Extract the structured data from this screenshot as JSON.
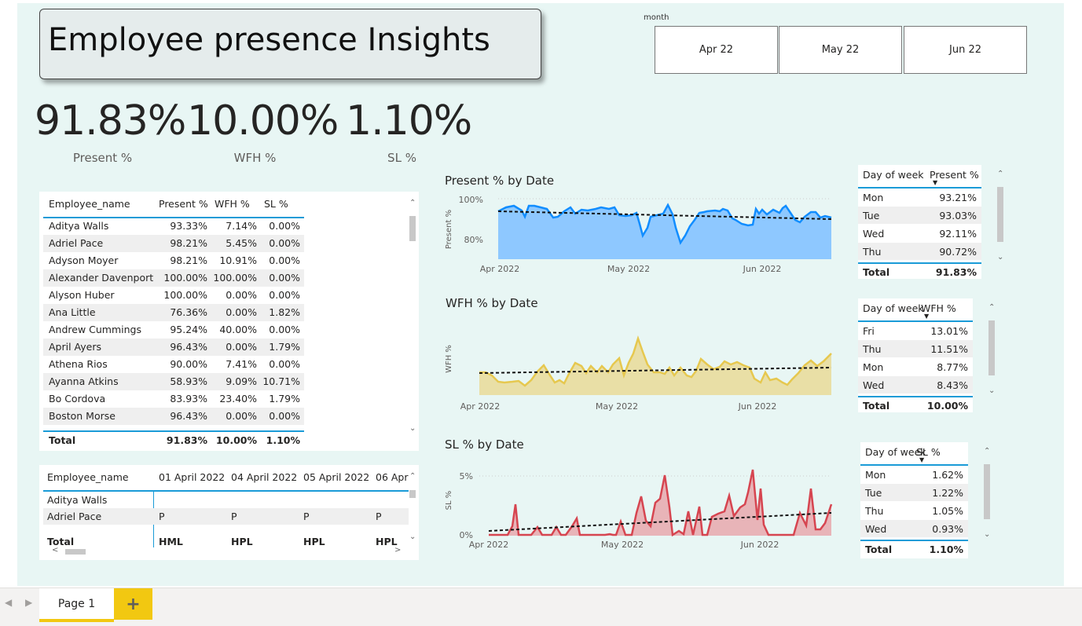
{
  "title": "Employee presence Insights",
  "slicer": {
    "label": "month",
    "options": [
      "Apr 22",
      "May 22",
      "Jun 22"
    ]
  },
  "kpis": [
    {
      "value": "91.83%",
      "label": "Present %"
    },
    {
      "value": "10.00%",
      "label": "WFH %"
    },
    {
      "value": "1.10%",
      "label": "SL %"
    }
  ],
  "employee_table": {
    "headers": [
      "Employee_name",
      "Present %",
      "WFH %",
      "SL %"
    ],
    "rows": [
      [
        "Aditya Walls",
        "93.33%",
        "7.14%",
        "0.00%"
      ],
      [
        "Adriel Pace",
        "98.21%",
        "5.45%",
        "0.00%"
      ],
      [
        "Adyson Moyer",
        "98.21%",
        "10.91%",
        "0.00%"
      ],
      [
        "Alexander Davenport",
        "100.00%",
        "100.00%",
        "0.00%"
      ],
      [
        "Alyson Huber",
        "100.00%",
        "0.00%",
        "0.00%"
      ],
      [
        "Ana Little",
        "76.36%",
        "0.00%",
        "1.82%"
      ],
      [
        "Andrew Cummings",
        "95.24%",
        "40.00%",
        "0.00%"
      ],
      [
        "April Ayers",
        "96.43%",
        "0.00%",
        "1.79%"
      ],
      [
        "Athena Rios",
        "90.00%",
        "7.41%",
        "0.00%"
      ],
      [
        "Ayanna Atkins",
        "58.93%",
        "9.09%",
        "10.71%"
      ],
      [
        "Bo Cordova",
        "83.93%",
        "23.40%",
        "1.79%"
      ],
      [
        "Boston Morse",
        "96.43%",
        "0.00%",
        "0.00%"
      ]
    ],
    "total": [
      "Total",
      "91.83%",
      "10.00%",
      "1.10%"
    ]
  },
  "matrix_table": {
    "headers": [
      "Employee_name",
      "01 April 2022",
      "04 April 2022",
      "05 April 2022",
      "06 Apr"
    ],
    "rows": [
      [
        "Aditya Walls",
        "",
        "",
        "",
        ""
      ],
      [
        "Adriel Pace",
        "P",
        "P",
        "P",
        "P"
      ]
    ],
    "total": [
      "Total",
      "HML",
      "HPL",
      "HPL",
      "HPL"
    ]
  },
  "charts": {
    "present": {
      "title": "Present % by Date",
      "ylabel": "Present %",
      "yticks": [
        "100%",
        "80%"
      ],
      "xticks": [
        "Apr 2022",
        "May 2022",
        "Jun 2022"
      ],
      "color": "#118dff",
      "fill": "#8ec8ff"
    },
    "wfh": {
      "title": "WFH % by Date",
      "ylabel": "WFH %",
      "xticks": [
        "Apr 2022",
        "May 2022",
        "Jun 2022"
      ],
      "color": "#e6c84f",
      "fill": "#e9dfa6"
    },
    "sl": {
      "title": "SL % by Date",
      "ylabel": "SL %",
      "yticks": [
        "5%",
        "0%"
      ],
      "xticks": [
        "Apr 2022",
        "May 2022",
        "Jun 2022"
      ],
      "color": "#d64550",
      "fill": "#e8b4b8"
    }
  },
  "dow_present": {
    "headers": [
      "Day of week",
      "Present %"
    ],
    "rows": [
      [
        "Mon",
        "93.21%"
      ],
      [
        "Tue",
        "93.03%"
      ],
      [
        "Wed",
        "92.11%"
      ],
      [
        "Thu",
        "90.72%"
      ]
    ],
    "total": [
      "Total",
      "91.83%"
    ]
  },
  "dow_wfh": {
    "headers": [
      "Day of week",
      "WFH %"
    ],
    "rows": [
      [
        "Fri",
        "13.01%"
      ],
      [
        "Thu",
        "11.51%"
      ],
      [
        "Mon",
        "8.77%"
      ],
      [
        "Wed",
        "8.43%"
      ]
    ],
    "total": [
      "Total",
      "10.00%"
    ]
  },
  "dow_sl": {
    "headers": [
      "Day of week",
      "SL %"
    ],
    "rows": [
      [
        "Mon",
        "1.62%"
      ],
      [
        "Tue",
        "1.22%"
      ],
      [
        "Thu",
        "1.05%"
      ],
      [
        "Wed",
        "0.93%"
      ]
    ],
    "total": [
      "Total",
      "1.10%"
    ]
  },
  "tabs": {
    "page": "Page 1",
    "add": "+"
  }
}
